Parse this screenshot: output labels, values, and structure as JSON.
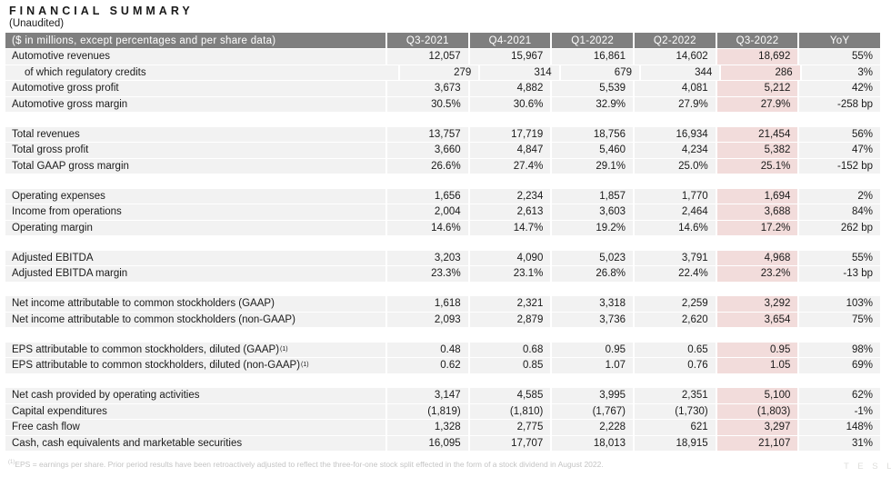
{
  "page": {
    "title": "FINANCIAL SUMMARY",
    "subtitle": "(Unaudited)",
    "footnote_sup": "(1)",
    "footnote": "EPS = earnings per share. Prior period results have been retroactively adjusted to reflect the three-for-one stock split effected in the form of a stock dividend in August 2022.",
    "watermark": "T E S L A"
  },
  "colors": {
    "header_bg": "#7f7f7f",
    "header_text": "#ffffff",
    "row_bg": "#f2f2f2",
    "highlight_bg": "#f2dcdb",
    "body_text": "#1a1a1a",
    "title_text": "#1a1a1a",
    "footnote_text": "#c4c4c4",
    "watermark_text": "#dededb"
  },
  "table": {
    "label_header": "($ in millions, except percentages and per share data)",
    "columns": [
      "Q3-2021",
      "Q4-2021",
      "Q1-2022",
      "Q2-2022",
      "Q3-2022",
      "YoY"
    ],
    "highlight_column": "Q3-2022",
    "sections": [
      {
        "rows": [
          {
            "label": "Automotive revenues",
            "values": [
              "12,057",
              "15,967",
              "16,861",
              "14,602",
              "18,692",
              "55%"
            ]
          },
          {
            "label": "of which regulatory credits",
            "indent": true,
            "values": [
              "279",
              "314",
              "679",
              "344",
              "286",
              "3%"
            ]
          },
          {
            "label": "Automotive gross profit",
            "values": [
              "3,673",
              "4,882",
              "5,539",
              "4,081",
              "5,212",
              "42%"
            ]
          },
          {
            "label": "Automotive gross margin",
            "values": [
              "30.5%",
              "30.6%",
              "32.9%",
              "27.9%",
              "27.9%",
              "-258 bp"
            ]
          }
        ]
      },
      {
        "rows": [
          {
            "label": "Total revenues",
            "values": [
              "13,757",
              "17,719",
              "18,756",
              "16,934",
              "21,454",
              "56%"
            ]
          },
          {
            "label": "Total gross profit",
            "values": [
              "3,660",
              "4,847",
              "5,460",
              "4,234",
              "5,382",
              "47%"
            ]
          },
          {
            "label": "Total GAAP gross margin",
            "values": [
              "26.6%",
              "27.4%",
              "29.1%",
              "25.0%",
              "25.1%",
              "-152 bp"
            ]
          }
        ]
      },
      {
        "rows": [
          {
            "label": "Operating expenses",
            "values": [
              "1,656",
              "2,234",
              "1,857",
              "1,770",
              "1,694",
              "2%"
            ]
          },
          {
            "label": "Income from operations",
            "values": [
              "2,004",
              "2,613",
              "3,603",
              "2,464",
              "3,688",
              "84%"
            ]
          },
          {
            "label": "Operating margin",
            "values": [
              "14.6%",
              "14.7%",
              "19.2%",
              "14.6%",
              "17.2%",
              "262 bp"
            ]
          }
        ]
      },
      {
        "rows": [
          {
            "label": "Adjusted EBITDA",
            "values": [
              "3,203",
              "4,090",
              "5,023",
              "3,791",
              "4,968",
              "55%"
            ]
          },
          {
            "label": "Adjusted EBITDA margin",
            "values": [
              "23.3%",
              "23.1%",
              "26.8%",
              "22.4%",
              "23.2%",
              "-13 bp"
            ]
          }
        ]
      },
      {
        "rows": [
          {
            "label": "Net income attributable to common stockholders (GAAP)",
            "values": [
              "1,618",
              "2,321",
              "3,318",
              "2,259",
              "3,292",
              "103%"
            ]
          },
          {
            "label": "Net income attributable to common stockholders (non-GAAP)",
            "values": [
              "2,093",
              "2,879",
              "3,736",
              "2,620",
              "3,654",
              "75%"
            ]
          }
        ]
      },
      {
        "rows": [
          {
            "label": "EPS attributable to common stockholders, diluted (GAAP)",
            "sup": "(1)",
            "values": [
              "0.48",
              "0.68",
              "0.95",
              "0.65",
              "0.95",
              "98%"
            ]
          },
          {
            "label": "EPS attributable to common stockholders, diluted (non-GAAP)",
            "sup": "(1)",
            "values": [
              "0.62",
              "0.85",
              "1.07",
              "0.76",
              "1.05",
              "69%"
            ]
          }
        ]
      },
      {
        "rows": [
          {
            "label": "Net cash provided by operating activities",
            "values": [
              "3,147",
              "4,585",
              "3,995",
              "2,351",
              "5,100",
              "62%"
            ]
          },
          {
            "label": "Capital expenditures",
            "values": [
              "(1,819)",
              "(1,810)",
              "(1,767)",
              "(1,730)",
              "(1,803)",
              "-1%"
            ]
          },
          {
            "label": "Free cash flow",
            "values": [
              "1,328",
              "2,775",
              "2,228",
              "621",
              "3,297",
              "148%"
            ]
          },
          {
            "label": "Cash, cash equivalents and marketable securities",
            "values": [
              "16,095",
              "17,707",
              "18,013",
              "18,915",
              "21,107",
              "31%"
            ]
          }
        ]
      }
    ]
  }
}
